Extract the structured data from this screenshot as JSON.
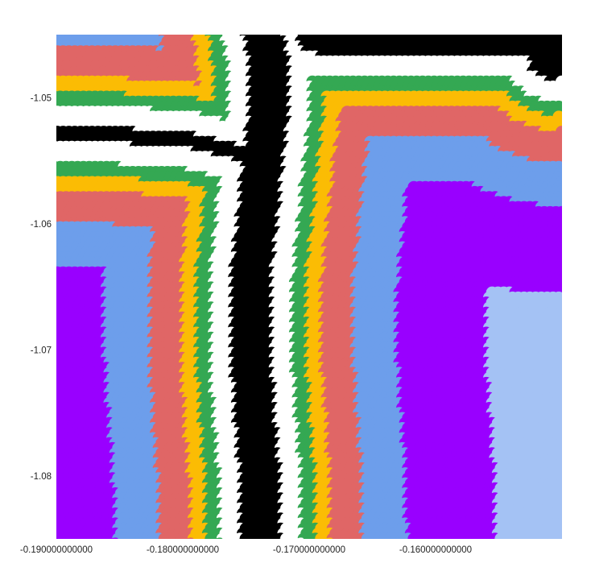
{
  "chart_data": {
    "type": "heatmap",
    "title": "",
    "xlabel": "",
    "ylabel": "",
    "xlim": [
      -0.19,
      -0.15
    ],
    "ylim": [
      -1.085,
      -1.045
    ],
    "x_ticks": [
      {
        "value": -0.19,
        "label": "-0.190000000000"
      },
      {
        "value": -0.18,
        "label": "-0.180000000000"
      },
      {
        "value": -0.17,
        "label": "-0.170000000000"
      },
      {
        "value": -0.16,
        "label": "-0.160000000000"
      }
    ],
    "y_ticks": [
      {
        "value": -1.05,
        "label": "-1.05"
      },
      {
        "value": -1.06,
        "label": "-1.06"
      },
      {
        "value": -1.07,
        "label": "-1.07"
      },
      {
        "value": -1.08,
        "label": "-1.08"
      }
    ],
    "grid": false,
    "marker": "circle",
    "palette": [
      "#000000",
      "#ffffff",
      "#34a853",
      "#fbbc04",
      "#e06666",
      "#6d9eeb",
      "#9900ff",
      "#a4c2f4"
    ],
    "bands": [
      {
        "level": 1,
        "color": "#ffffff",
        "width": 0.00165
      },
      {
        "level": 2,
        "color": "#34a853",
        "width": 0.0011
      },
      {
        "level": 3,
        "color": "#fbbc04",
        "width": 0.0012
      },
      {
        "level": 4,
        "color": "#e06666",
        "width": 0.0025
      },
      {
        "level": 5,
        "color": "#6d9eeb",
        "width": 0.0035
      },
      {
        "level": 6,
        "color": "#9900ff",
        "width": 0.007
      },
      {
        "level": 7,
        "color": "#a4c2f4",
        "width": 0.02
      }
    ],
    "core": {
      "color": "#000000",
      "spine": [
        [
          -0.1735,
          -1.045
        ],
        [
          -0.173,
          -1.048
        ],
        [
          -0.173,
          -1.051
        ],
        [
          -0.1735,
          -1.055
        ],
        [
          -0.174,
          -1.06
        ],
        [
          -0.1745,
          -1.065
        ],
        [
          -0.1745,
          -1.07
        ],
        [
          -0.1742,
          -1.075
        ],
        [
          -0.1738,
          -1.08
        ],
        [
          -0.1737,
          -1.085
        ]
      ],
      "spine_halfwidth": 0.0016,
      "arm": [
        [
          -0.1902,
          -1.053
        ],
        [
          -0.186,
          -1.0532
        ],
        [
          -0.18,
          -1.0535
        ],
        [
          -0.1745,
          -1.0548
        ]
      ],
      "arm_halfwidth": 0.0006,
      "top_right": [
        [
          -0.169,
          -1.045
        ],
        [
          -0.162,
          -1.045
        ],
        [
          -0.156,
          -1.045
        ],
        [
          -0.1515,
          -1.045
        ],
        [
          -0.1508,
          -1.047
        ]
      ],
      "top_right_halfwidth": 0.0018
    }
  }
}
